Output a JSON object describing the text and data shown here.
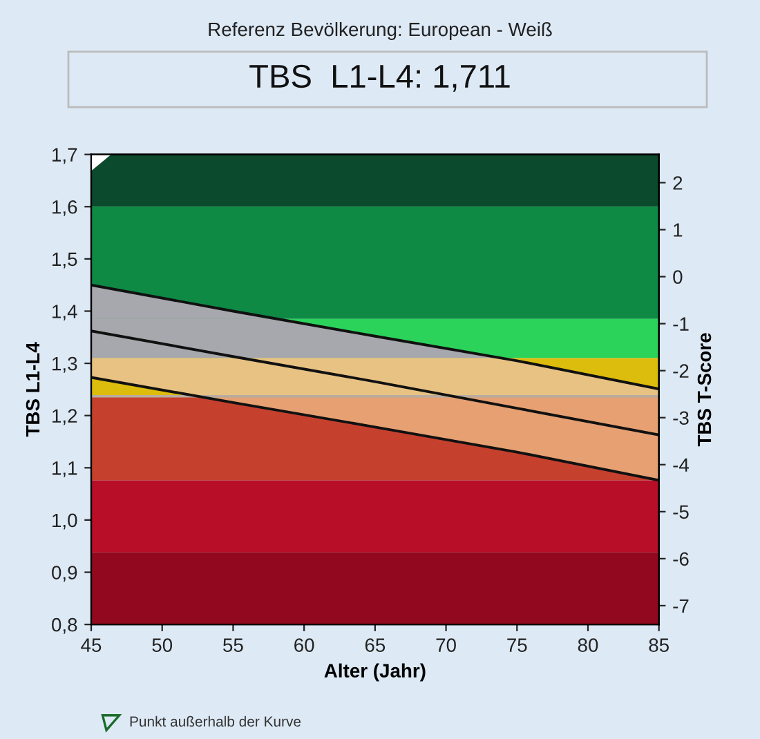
{
  "chart_data": {
    "type": "line",
    "title": "Referenz Bevölkerung: European - Weiß",
    "subtitle": "TBS  L1-L4: 1,711",
    "xlabel": "Alter (Jahr)",
    "ylabel": "TBS L1-L4",
    "y2label": "TBS T-Score",
    "annotations": [
      "Punkt außerhalb der Kurve"
    ],
    "xlim": [
      45,
      85
    ],
    "xticks": [
      45,
      50,
      55,
      60,
      65,
      70,
      75,
      80,
      85
    ],
    "ylim": [
      0.8,
      1.7
    ],
    "yticks": [
      {
        "value": 0.8,
        "label": "0,8"
      },
      {
        "value": 0.9,
        "label": "0,9"
      },
      {
        "value": 1.0,
        "label": "1,0"
      },
      {
        "value": 1.1,
        "label": "1,1"
      },
      {
        "value": 1.2,
        "label": "1,2"
      },
      {
        "value": 1.3,
        "label": "1,3"
      },
      {
        "value": 1.4,
        "label": "1,4"
      },
      {
        "value": 1.5,
        "label": "1,5"
      },
      {
        "value": 1.6,
        "label": "1,6"
      },
      {
        "value": 1.7,
        "label": "1,7"
      }
    ],
    "y2lim": [
      -7.4,
      2.6
    ],
    "y2ticks": [
      2,
      1,
      0,
      -1,
      -2,
      -3,
      -4,
      -5,
      -6,
      -7
    ],
    "bands": [
      {
        "axis": "y",
        "from": 1.6,
        "to": 1.7,
        "color": "#0b4a2c"
      },
      {
        "axis": "y",
        "from": 1.385,
        "to": 1.6,
        "color": "#0e8a44"
      },
      {
        "axis": "y",
        "from": 1.31,
        "to": 1.385,
        "color": "#2bd35a"
      },
      {
        "axis": "y",
        "from": 1.237,
        "to": 1.31,
        "color": "#dcbc0c"
      },
      {
        "axis": "y",
        "from": 1.076,
        "to": 1.237,
        "color": "#c6402e"
      },
      {
        "axis": "y",
        "from": 0.938,
        "to": 1.076,
        "color": "#b80e27"
      },
      {
        "axis": "y",
        "from": 0.8,
        "to": 0.938,
        "color": "#92091f"
      }
    ],
    "ref_lines": [
      {
        "axis": "y",
        "value": 1.237,
        "color": "#b8aca0",
        "line_style": "solid"
      }
    ],
    "series": [
      {
        "color": "#111111",
        "x": [
          45,
          55,
          65,
          75,
          85
        ],
        "values": [
          1.45,
          1.4,
          1.352,
          1.305,
          1.251
        ]
      },
      {
        "color": "#111111",
        "x": [
          45,
          55,
          65,
          75,
          85
        ],
        "values": [
          1.362,
          1.313,
          1.265,
          1.214,
          1.163
        ],
        "lower": [
          1.273,
          1.225,
          1.178,
          1.13,
          1.076
        ],
        "upper": [
          1.45,
          1.4,
          1.352,
          1.305,
          1.251
        ]
      },
      {
        "color": "#111111",
        "x": [
          45,
          55,
          65,
          75,
          85
        ],
        "values": [
          1.273,
          1.225,
          1.178,
          1.13,
          1.076
        ]
      }
    ]
  }
}
